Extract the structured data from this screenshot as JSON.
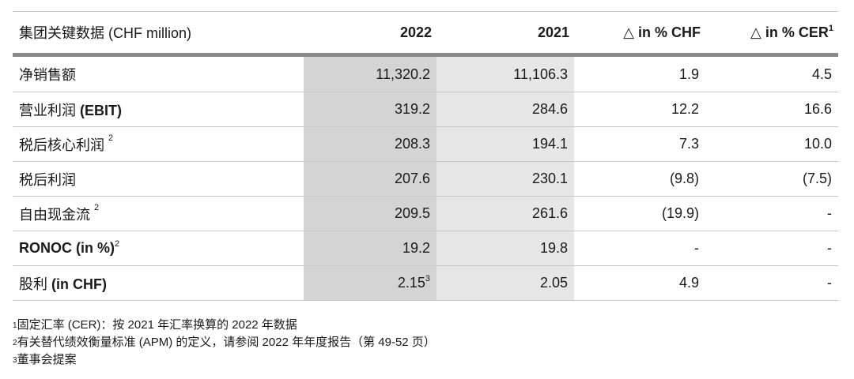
{
  "header": {
    "title": "集团关键数据 (CHF million)",
    "col_2022": "2022",
    "col_2021": "2021",
    "col_chf": "△ in % CHF",
    "col_cer": "△ in % CER",
    "col_cer_sup": "1"
  },
  "rows": [
    {
      "label": "净销售额",
      "label_bold": "",
      "label_sup": "",
      "v2022": "11,320.2",
      "v2022_sup": "",
      "v2021": "11,106.3",
      "chf": "1.9",
      "cer": "4.5"
    },
    {
      "label": "营业利润 ",
      "label_bold": "(EBIT)",
      "label_sup": "",
      "v2022": "319.2",
      "v2022_sup": "",
      "v2021": "284.6",
      "chf": "12.2",
      "cer": "16.6"
    },
    {
      "label": "税后核心利润 ",
      "label_bold": "",
      "label_sup": "2",
      "v2022": "208.3",
      "v2022_sup": "",
      "v2021": "194.1",
      "chf": "7.3",
      "cer": "10.0"
    },
    {
      "label": "税后利润",
      "label_bold": "",
      "label_sup": "",
      "v2022": "207.6",
      "v2022_sup": "",
      "v2021": "230.1",
      "chf": "(9.8)",
      "cer": "(7.5)"
    },
    {
      "label": "自由现金流 ",
      "label_bold": "",
      "label_sup": "2",
      "v2022": "209.5",
      "v2022_sup": "",
      "v2021": "261.6",
      "chf": "(19.9)",
      "cer": "-"
    },
    {
      "label": "",
      "label_bold": "RONOC (in %)",
      "label_sup": "2",
      "v2022": "19.2",
      "v2022_sup": "",
      "v2021": "19.8",
      "chf": "-",
      "cer": "-"
    },
    {
      "label": "股利 ",
      "label_bold": "(in CHF)",
      "label_sup": "",
      "v2022": "2.15",
      "v2022_sup": "3",
      "v2021": "2.05",
      "chf": "4.9",
      "cer": "-"
    }
  ],
  "footnotes": [
    {
      "num": "1",
      "text": "固定汇率 (CER)：按 2021 年汇率换算的 2022 年数据"
    },
    {
      "num": "2",
      "text": "有关替代绩效衡量标准 (APM) 的定义，请参阅 2022 年年度报告（第 49-52 页）"
    },
    {
      "num": "3",
      "text": "董事会提案"
    }
  ]
}
